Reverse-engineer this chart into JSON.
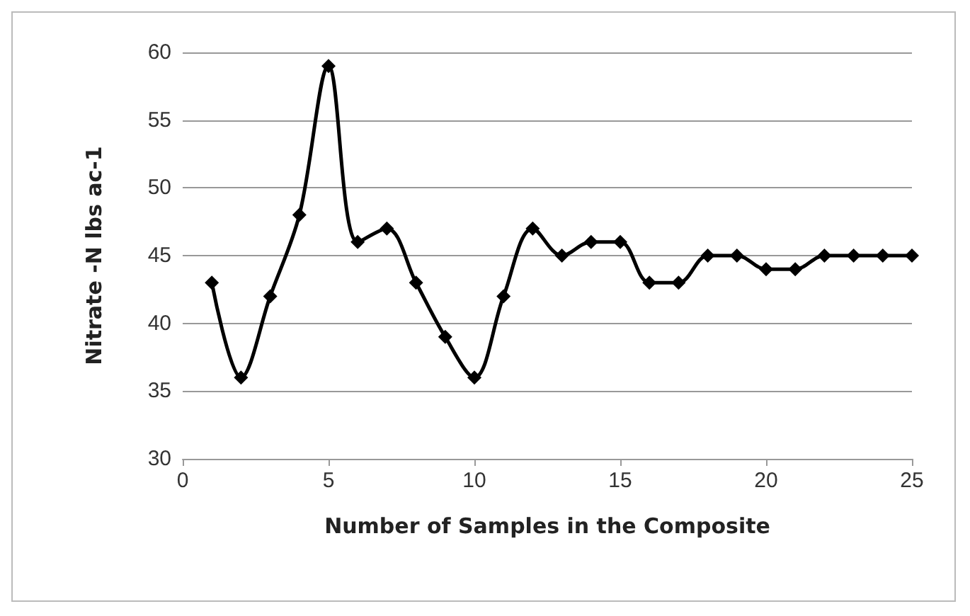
{
  "chart_data": {
    "type": "line",
    "xlabel": "Number of Samples in the Composite",
    "ylabel": "Nitrate -N lbs ac-1",
    "x": [
      1,
      2,
      3,
      4,
      5,
      6,
      7,
      8,
      9,
      10,
      11,
      12,
      13,
      14,
      15,
      16,
      17,
      18,
      19,
      20,
      21,
      22,
      23,
      24,
      25
    ],
    "series": [
      {
        "color": "#000000",
        "values": [
          43,
          36,
          42,
          48,
          59,
          46,
          47,
          43,
          39,
          36,
          42,
          47,
          45,
          46,
          46,
          43,
          43,
          45,
          45,
          44,
          44,
          45,
          45,
          45,
          45
        ]
      }
    ],
    "xlim": [
      0,
      25
    ],
    "xticks": [
      0,
      5,
      10,
      15,
      20,
      25
    ],
    "ylim": [
      30,
      60
    ],
    "yticks": [
      30,
      35,
      40,
      45,
      50,
      55,
      60
    ],
    "grid": "y",
    "marker": "diamond",
    "line_style": "solid"
  }
}
